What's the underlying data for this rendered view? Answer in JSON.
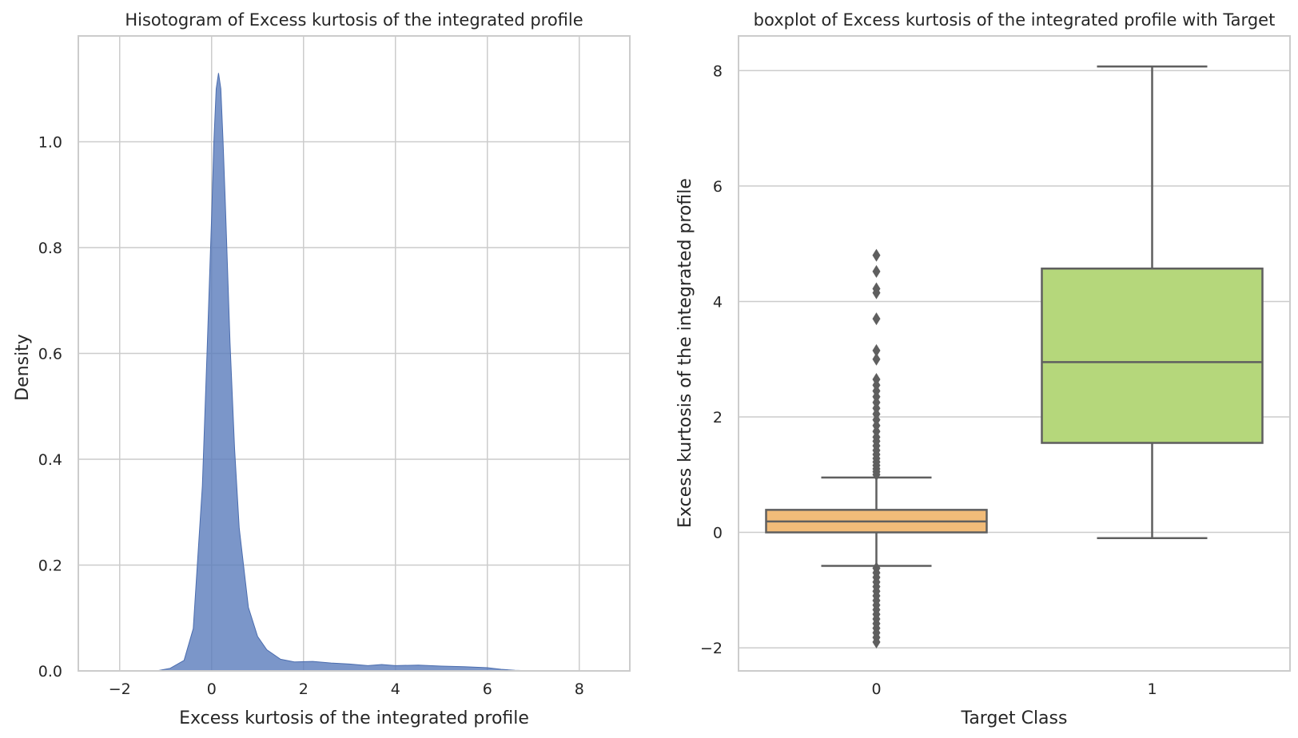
{
  "chart_data": [
    {
      "type": "area",
      "title": "Hisotogram of Excess kurtosis of the integrated profile",
      "xlabel": "Excess kurtosis of the integrated profile",
      "ylabel": "Density",
      "xlim": [
        -2.9,
        9.1
      ],
      "ylim": [
        0,
        1.2
      ],
      "xticks": [
        -2,
        0,
        2,
        4,
        6,
        8
      ],
      "xtick_labels": [
        "−2",
        "0",
        "2",
        "4",
        "6",
        "8"
      ],
      "yticks": [
        0.0,
        0.2,
        0.4,
        0.6,
        0.8,
        1.0
      ],
      "ytick_labels": [
        "0.0",
        "0.2",
        "0.4",
        "0.6",
        "0.8",
        "1.0"
      ],
      "grid": true,
      "color": "#5a7cbc",
      "x": [
        -2.9,
        -1.2,
        -0.9,
        -0.6,
        -0.4,
        -0.2,
        -0.1,
        0.0,
        0.05,
        0.1,
        0.15,
        0.2,
        0.25,
        0.3,
        0.4,
        0.5,
        0.6,
        0.8,
        1.0,
        1.2,
        1.5,
        1.8,
        2.2,
        2.6,
        3.0,
        3.4,
        3.7,
        4.0,
        4.5,
        5.0,
        5.5,
        6.0,
        6.3,
        6.6,
        7.0,
        9.1
      ],
      "y": [
        0.0,
        0.0,
        0.005,
        0.02,
        0.08,
        0.35,
        0.6,
        0.86,
        1.0,
        1.1,
        1.13,
        1.1,
        1.0,
        0.88,
        0.62,
        0.42,
        0.27,
        0.12,
        0.065,
        0.04,
        0.022,
        0.017,
        0.018,
        0.015,
        0.013,
        0.01,
        0.012,
        0.01,
        0.011,
        0.009,
        0.008,
        0.006,
        0.003,
        0.001,
        0.0,
        0.0
      ]
    },
    {
      "type": "box",
      "title": "boxplot of Excess kurtosis of the integrated profile with Target",
      "xlabel": "Target Class",
      "ylabel": "Excess kurtosis of the integrated profile",
      "categories": [
        "0",
        "1"
      ],
      "ylim": [
        -2.4,
        8.6
      ],
      "yticks": [
        -2,
        0,
        2,
        4,
        6,
        8
      ],
      "ytick_labels": [
        "−2",
        "0",
        "2",
        "4",
        "6",
        "8"
      ],
      "grid": true,
      "boxes": [
        {
          "category": "0",
          "q1": 0.0,
          "median": 0.19,
          "q3": 0.39,
          "whisker_low": -0.58,
          "whisker_high": 0.95,
          "color": "#f2bc79",
          "outliers": [
            4.8,
            4.52,
            4.22,
            4.15,
            3.7,
            3.15,
            3.0,
            2.65,
            2.55,
            2.45,
            2.35,
            2.25,
            2.15,
            2.05,
            1.95,
            1.85,
            1.75,
            1.65,
            1.58,
            1.5,
            1.42,
            1.35,
            1.28,
            1.22,
            1.16,
            1.1,
            1.05,
            1.0,
            -0.62,
            -0.7,
            -0.78,
            -0.86,
            -0.94,
            -1.02,
            -1.1,
            -1.18,
            -1.26,
            -1.34,
            -1.42,
            -1.5,
            -1.58,
            -1.66,
            -1.74,
            -1.82,
            -1.9
          ]
        },
        {
          "category": "1",
          "q1": 1.55,
          "median": 2.95,
          "q3": 4.57,
          "whisker_low": -0.1,
          "whisker_high": 8.07,
          "color": "#b5d77b",
          "outliers": []
        }
      ]
    }
  ]
}
